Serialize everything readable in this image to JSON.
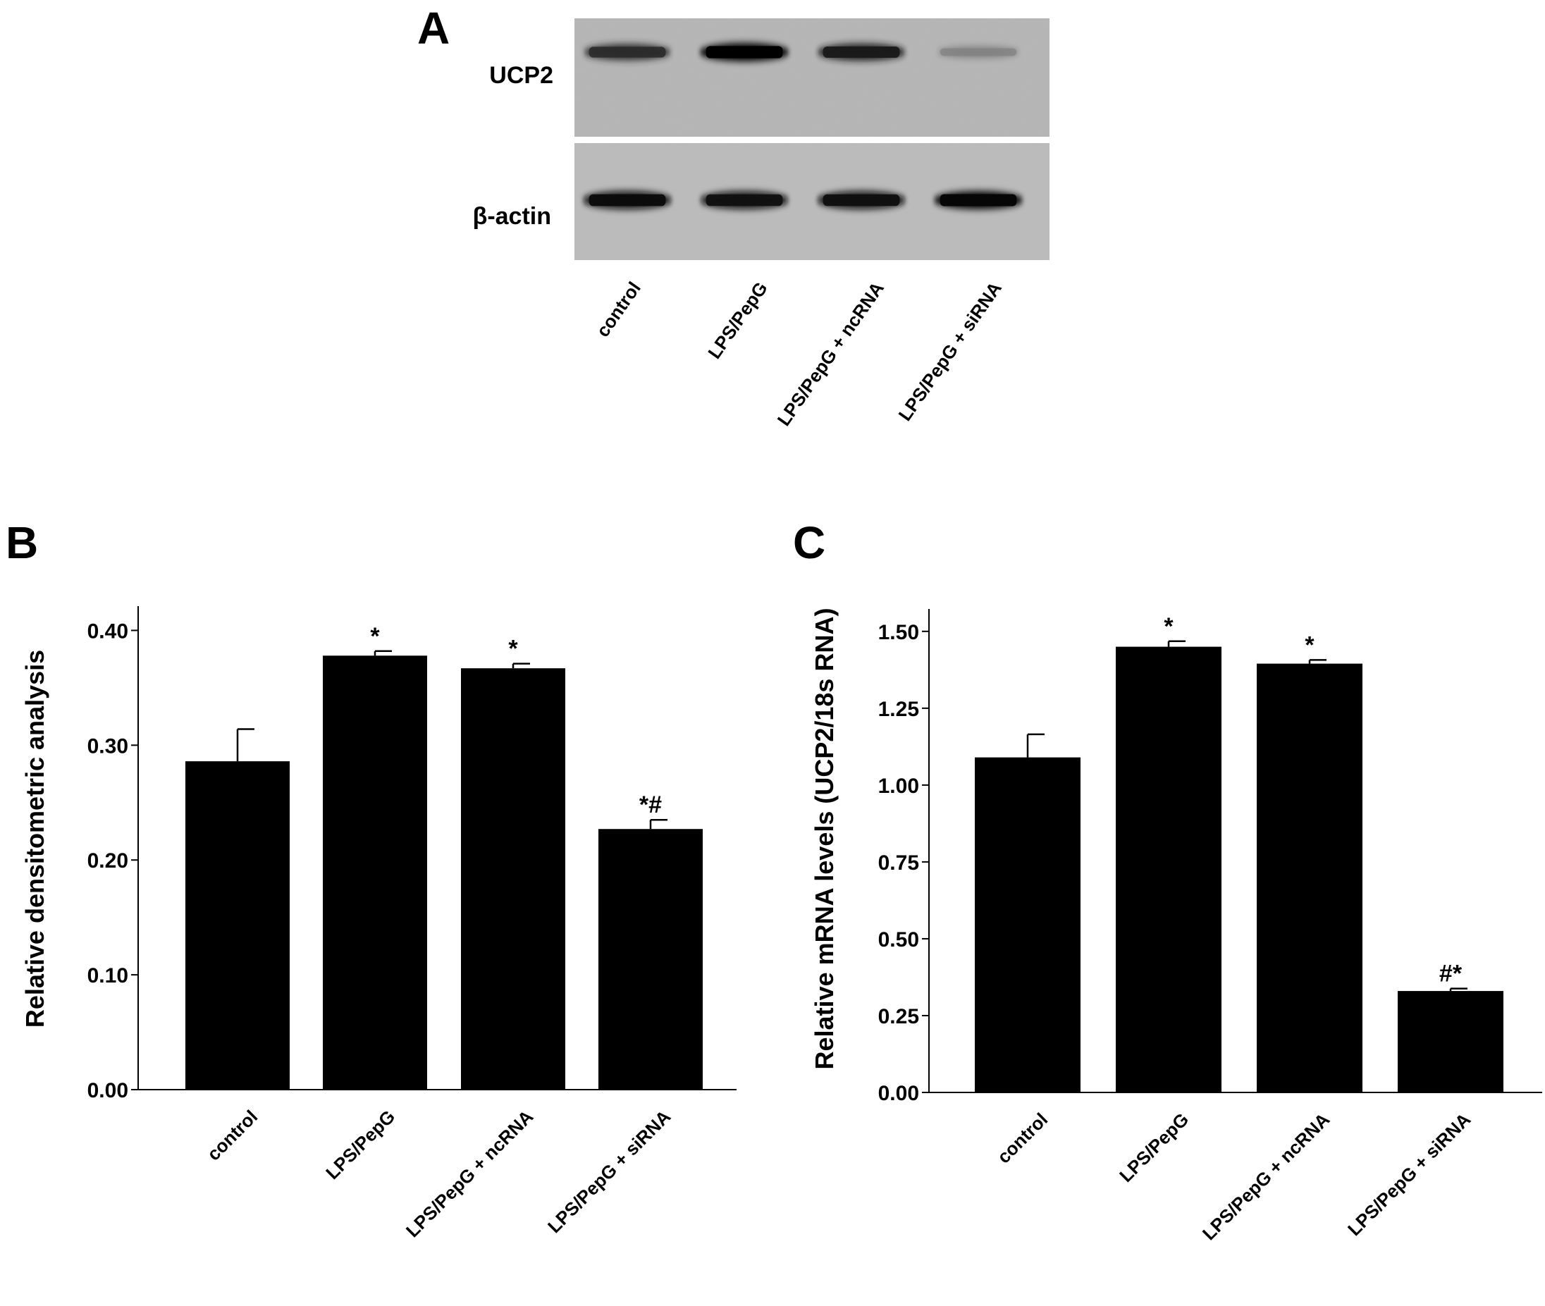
{
  "panels": {
    "a": "A",
    "b": "B",
    "c": "C"
  },
  "blot": {
    "rows": [
      {
        "label": "UCP2",
        "intensity": [
          0.8,
          1.0,
          0.88,
          0.4
        ]
      },
      {
        "label": "β-actin",
        "intensity": [
          0.95,
          0.92,
          0.93,
          0.97
        ]
      }
    ],
    "lanes": [
      "control",
      "LPS/PepG",
      "LPS/PepG + ncRNA",
      "LPS/PepG + siRNA"
    ]
  },
  "chart_data": [
    {
      "type": "bar",
      "ylabel": "Relative densitometric analysis",
      "categories": [
        "control",
        "LPS/PepG",
        "LPS/PepG + ncRNA",
        "LPS/PepG + siRNA"
      ],
      "values": [
        0.286,
        0.378,
        0.367,
        0.227
      ],
      "errors": [
        0.028,
        0.004,
        0.004,
        0.008
      ],
      "annotations": [
        "",
        "*",
        "*",
        "*#"
      ],
      "yticks": [
        "0.00",
        "0.10",
        "0.20",
        "0.30",
        "0.40"
      ],
      "ylim": [
        0,
        0.415
      ]
    },
    {
      "type": "bar",
      "ylabel": "Relative mRNA levels (UCP2/18s RNA)",
      "categories": [
        "control",
        "LPS/PepG",
        "LPS/PepG + ncRNA",
        "LPS/PepG + siRNA"
      ],
      "values": [
        1.09,
        1.45,
        1.395,
        0.33
      ],
      "errors": [
        0.075,
        0.018,
        0.012,
        0.008
      ],
      "annotations": [
        "",
        "*",
        "*",
        "#*"
      ],
      "yticks": [
        "0.00",
        "0.25",
        "0.50",
        "0.75",
        "1.00",
        "1.25",
        "1.50"
      ],
      "ylim": [
        0,
        1.55
      ]
    }
  ]
}
